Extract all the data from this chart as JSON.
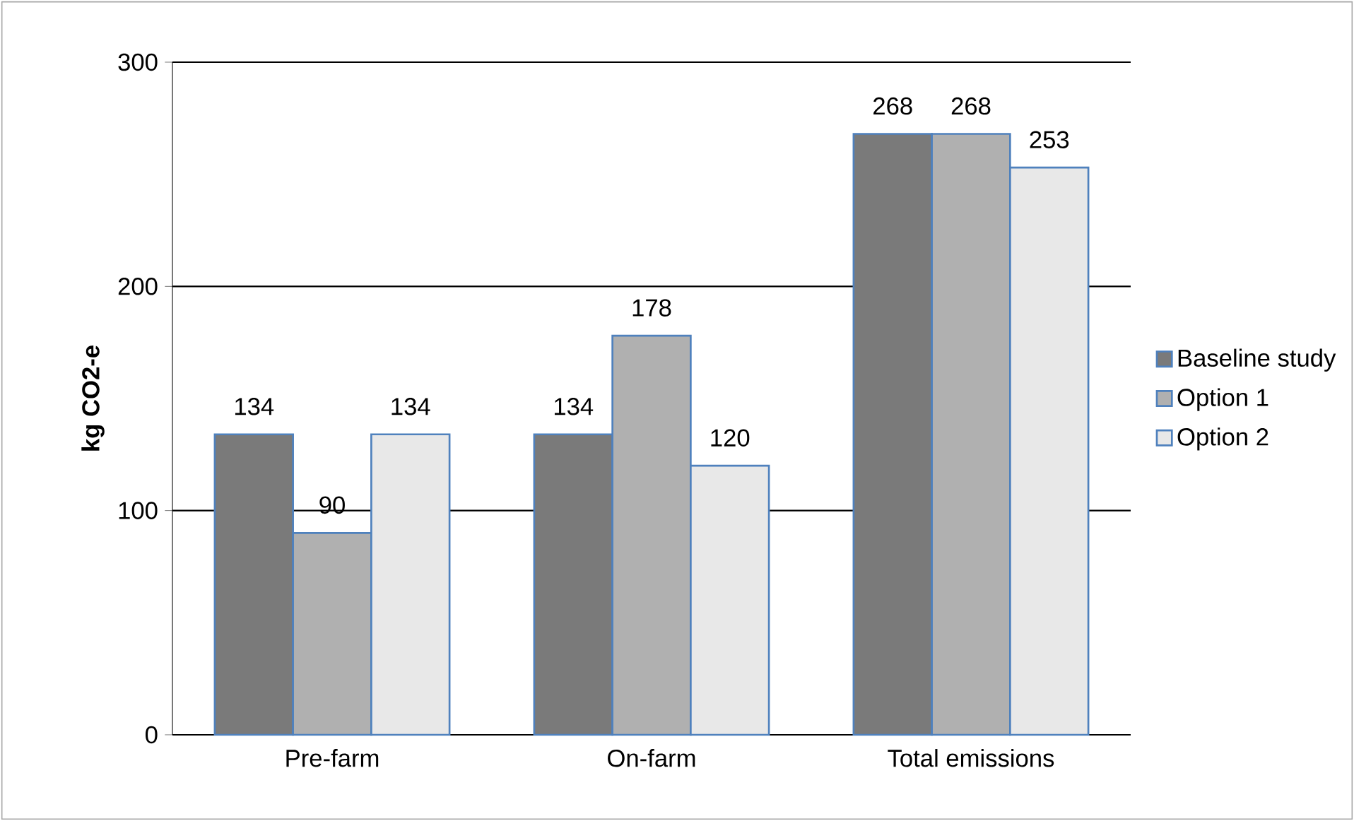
{
  "chart_data": {
    "type": "bar",
    "ylabel": "kg CO2-e",
    "categories": [
      "Pre-farm",
      "On-farm",
      "Total emissions"
    ],
    "series": [
      {
        "name": "Baseline study",
        "color": "#7a7a7a",
        "values": [
          134,
          134,
          268
        ]
      },
      {
        "name": "Option 1",
        "color": "#b0b0b0",
        "values": [
          90,
          178,
          268
        ]
      },
      {
        "name": "Option 2",
        "color": "#e8e8e8",
        "values": [
          134,
          120,
          253
        ]
      }
    ],
    "ylim": [
      0,
      300
    ],
    "yticks": [
      0,
      100,
      200,
      300
    ],
    "grid": "y",
    "legend": "right",
    "data_labels": true
  }
}
